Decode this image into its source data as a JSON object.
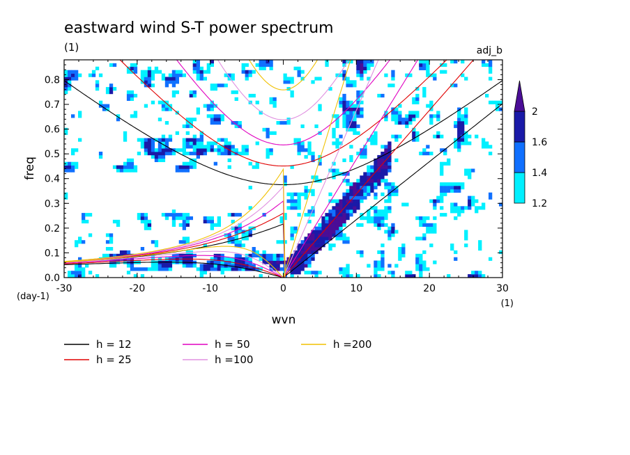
{
  "chart_data": {
    "type": "heatmap",
    "title": "eastward wind S-T power spectrum",
    "subtitle_left": "(1)",
    "subtitle_right": "adj_b",
    "xlabel": "wvn",
    "ylabel": "freq",
    "x_unit": "(1)",
    "y_unit": "(day-1)",
    "xlim": [
      -30,
      30
    ],
    "ylim": [
      0,
      0.88
    ],
    "x_ticks": [
      -30,
      -20,
      -10,
      0,
      10,
      20,
      30
    ],
    "x_tick_labels": [
      "-30",
      "-20",
      "-10",
      "0",
      "10",
      "20",
      "30"
    ],
    "y_ticks": [
      0,
      0.1,
      0.2,
      0.3,
      0.4,
      0.5,
      0.6,
      0.7,
      0.8
    ],
    "y_tick_labels": [
      "0.0",
      "0.1",
      "0.2",
      "0.3",
      "0.4",
      "0.5",
      "0.6",
      "0.7",
      "0.8"
    ],
    "colorbar": {
      "levels": [
        1.2,
        1.4,
        1.6,
        2
      ],
      "labels": [
        "1.2",
        "1.4",
        "1.6",
        "2"
      ],
      "colors": [
        "#00f0ff",
        "#1070ff",
        "#1a1aa8",
        "#4a0d96"
      ]
    },
    "dispersion_curves": [
      {
        "name": "h = 12",
        "h": 12,
        "color": "#000000"
      },
      {
        "name": "h = 25",
        "h": 25,
        "color": "#e00000"
      },
      {
        "name": "h = 50",
        "h": 50,
        "color": "#e000c0"
      },
      {
        "name": "h =100",
        "h": 100,
        "color": "#e090e0"
      },
      {
        "name": "h =200",
        "h": 200,
        "color": "#f0c000"
      }
    ],
    "features": [
      {
        "kind": "kelvin_band",
        "x": [
          0,
          15
        ],
        "y": [
          0,
          0.5
        ],
        "level": 2
      },
      {
        "kind": "kelvin_upper_band",
        "x": [
          8,
          11
        ],
        "y": [
          0.6,
          0.88
        ],
        "level": 2
      },
      {
        "kind": "mrg_band",
        "x": [
          -25,
          0
        ],
        "y": [
          0.03,
          0.1
        ],
        "level": 1.6
      },
      {
        "kind": "er_band",
        "x": [
          -20,
          -5
        ],
        "y": [
          0.5,
          0.56
        ],
        "level": 1.6
      }
    ]
  }
}
